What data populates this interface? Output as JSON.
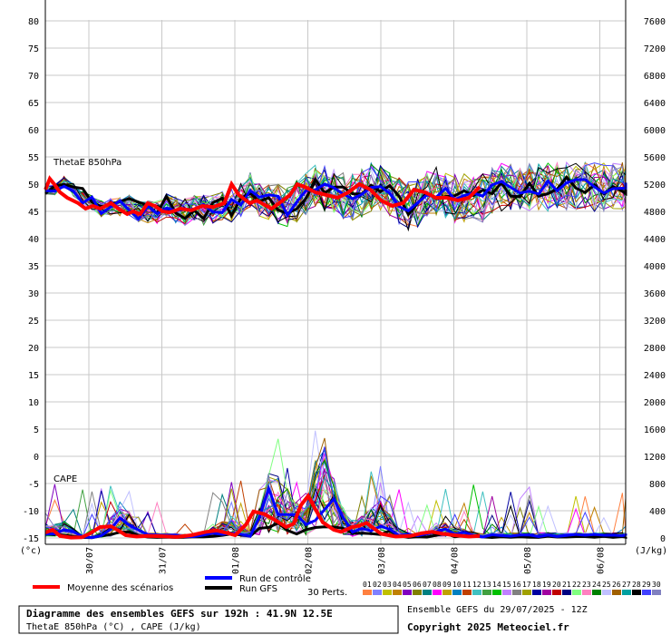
{
  "chart_data": {
    "type": "line",
    "left_axis": {
      "unit": "(°c)",
      "ticks": [
        80,
        75,
        70,
        65,
        60,
        55,
        50,
        45,
        40,
        35,
        30,
        25,
        20,
        15,
        10,
        5,
        0,
        -5,
        -10,
        -15
      ],
      "range": [
        -15,
        80
      ]
    },
    "right_axis": {
      "unit": "(J/kg)",
      "ticks": [
        7600,
        7200,
        6800,
        6400,
        6000,
        5600,
        5200,
        4800,
        4400,
        4000,
        3600,
        3200,
        2800,
        2400,
        2000,
        1600,
        1200,
        800,
        400,
        0
      ],
      "range": [
        0,
        7600
      ]
    },
    "x_ticks": [
      "30/07",
      "31/07",
      "01/08",
      "02/08",
      "03/08",
      "04/08",
      "05/08",
      "06/08"
    ],
    "panel_labels": {
      "thetae": "ThetaE 850hPa",
      "cape": "CAPE"
    },
    "mean_thetae": [
      [
        0,
        49
      ],
      [
        0.06,
        51
      ],
      [
        0.12,
        50
      ],
      [
        0.2,
        48.5
      ],
      [
        0.3,
        47.5
      ],
      [
        0.45,
        46.5
      ],
      [
        0.55,
        45.5
      ],
      [
        0.65,
        46
      ],
      [
        0.75,
        45.5
      ],
      [
        0.9,
        46.5
      ],
      [
        1.0,
        45.5
      ],
      [
        1.12,
        44.5
      ],
      [
        1.2,
        45
      ],
      [
        1.3,
        44.5
      ],
      [
        1.4,
        46.5
      ],
      [
        1.5,
        46
      ],
      [
        1.6,
        45
      ],
      [
        1.7,
        44.8
      ],
      [
        1.85,
        45.5
      ],
      [
        2.0,
        45.2
      ],
      [
        2.15,
        46
      ],
      [
        2.3,
        45.8
      ],
      [
        2.45,
        46.5
      ],
      [
        2.55,
        50
      ],
      [
        2.65,
        48
      ],
      [
        2.8,
        46.5
      ],
      [
        2.9,
        47
      ],
      [
        3.0,
        46.2
      ],
      [
        3.1,
        45.5
      ],
      [
        3.2,
        46.5
      ],
      [
        3.35,
        48
      ],
      [
        3.45,
        50
      ],
      [
        3.55,
        49.5
      ],
      [
        3.7,
        48.5
      ],
      [
        3.85,
        48
      ],
      [
        4.0,
        47.5
      ],
      [
        4.15,
        48.5
      ],
      [
        4.3,
        50
      ],
      [
        4.45,
        49
      ],
      [
        4.6,
        47
      ],
      [
        4.75,
        46
      ],
      [
        4.9,
        46.5
      ],
      [
        5.05,
        49
      ],
      [
        5.2,
        48.5
      ],
      [
        5.35,
        47.5
      ],
      [
        5.5,
        47.5
      ],
      [
        5.65,
        47
      ],
      [
        5.8,
        47.5
      ],
      [
        5.95,
        49.5
      ]
    ],
    "mean_cape": [
      [
        0,
        80
      ],
      [
        0.1,
        120
      ],
      [
        0.2,
        30
      ],
      [
        0.35,
        5
      ],
      [
        0.5,
        10
      ],
      [
        0.6,
        60
      ],
      [
        0.75,
        160
      ],
      [
        0.9,
        170
      ],
      [
        1.0,
        110
      ],
      [
        1.1,
        40
      ],
      [
        1.25,
        20
      ],
      [
        1.4,
        30
      ],
      [
        1.6,
        25
      ],
      [
        1.8,
        15
      ],
      [
        2.0,
        40
      ],
      [
        2.2,
        90
      ],
      [
        2.35,
        110
      ],
      [
        2.5,
        70
      ],
      [
        2.6,
        40
      ],
      [
        2.75,
        200
      ],
      [
        2.85,
        390
      ],
      [
        3.0,
        350
      ],
      [
        3.15,
        260
      ],
      [
        3.3,
        160
      ],
      [
        3.4,
        210
      ],
      [
        3.5,
        480
      ],
      [
        3.6,
        620
      ],
      [
        3.7,
        420
      ],
      [
        3.8,
        230
      ],
      [
        3.95,
        120
      ],
      [
        4.05,
        90
      ],
      [
        4.2,
        160
      ],
      [
        4.3,
        180
      ],
      [
        4.4,
        220
      ],
      [
        4.5,
        140
      ],
      [
        4.6,
        60
      ],
      [
        4.8,
        20
      ],
      [
        5.0,
        30
      ],
      [
        5.15,
        70
      ],
      [
        5.3,
        90
      ],
      [
        5.45,
        60
      ],
      [
        5.6,
        40
      ],
      [
        5.8,
        20
      ],
      [
        5.95,
        30
      ]
    ],
    "legend": {
      "mean": "Moyenne des scénarios",
      "control": "Run de contrôle",
      "gfs": "Run GFS",
      "perts_label": "30 Perts.",
      "perts_numbers": [
        "01",
        "02",
        "03",
        "04",
        "05",
        "06",
        "07",
        "08",
        "09",
        "10",
        "11",
        "12",
        "13",
        "14",
        "15",
        "16",
        "17",
        "18",
        "19",
        "20",
        "21",
        "22",
        "23",
        "24",
        "25",
        "26",
        "27",
        "28",
        "29",
        "30"
      ]
    },
    "colors": {
      "mean": "#ff0000",
      "control": "#0000ff",
      "gfs": "#000000",
      "grid": "#c8c8c8",
      "axis": "#000000",
      "perts": [
        "#ff8040",
        "#8080ff",
        "#c0c000",
        "#c08000",
        "#8000c0",
        "#808000",
        "#008080",
        "#ff00ff",
        "#c0a000",
        "#0080c0",
        "#c04000",
        "#40c0c0",
        "#40a040",
        "#00c000",
        "#c080ff",
        "#808080",
        "#a0a000",
        "#0000a0",
        "#a000a0",
        "#c00000",
        "#000080",
        "#80ff80",
        "#ff80c0",
        "#008000",
        "#c0c0ff",
        "#a06000",
        "#00a0a0",
        "#000000",
        "#4040ff",
        "#8080c0"
      ]
    }
  },
  "info_box": {
    "title": "Diagramme des ensembles GEFS sur 192h : 41.9N 12.5E",
    "subtitle": "ThetaE 850hPa (°C) , CAPE (J/kg)"
  },
  "run_info": "Ensemble GEFS du 29/07/2025 - 12Z",
  "copyright": "Copyright 2025 Meteociel.fr"
}
